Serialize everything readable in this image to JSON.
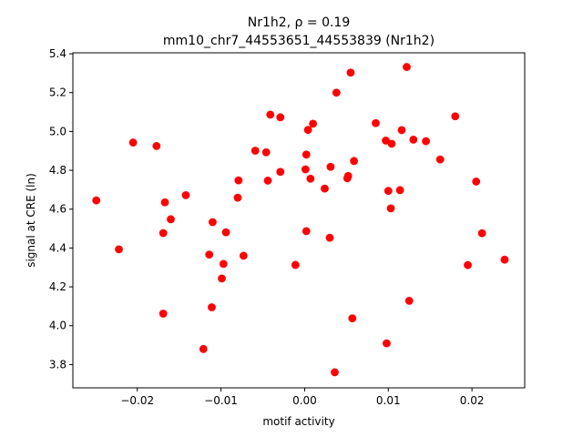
{
  "chart_data": {
    "type": "scatter",
    "title_line1": "Nr1h2, ρ = 0.19",
    "title_line2": "mm10_chr7_44553651_44553839 (Nr1h2)",
    "xlabel": "motif activity",
    "ylabel": "signal at CRE (ln)",
    "xlim": [
      -0.0277,
      0.0263
    ],
    "ylim": [
      3.68,
      5.405
    ],
    "xticks": [
      -0.02,
      -0.01,
      0.0,
      0.01,
      0.02
    ],
    "xtick_labels": [
      "−0.02",
      "−0.01",
      "0.00",
      "0.01",
      "0.02"
    ],
    "yticks": [
      3.8,
      4.0,
      4.2,
      4.4,
      4.6,
      4.8,
      5.0,
      5.2,
      5.4
    ],
    "ytick_labels": [
      "3.8",
      "4.0",
      "4.2",
      "4.4",
      "4.6",
      "4.8",
      "5.0",
      "5.2",
      "5.4"
    ],
    "grid": false,
    "marker_color": "#ff0000",
    "series": [
      {
        "points": [
          [
            -0.0249,
            4.645
          ],
          [
            -0.0222,
            4.393
          ],
          [
            -0.0205,
            4.943
          ],
          [
            -0.0177,
            4.925
          ],
          [
            -0.0169,
            4.062
          ],
          [
            -0.0169,
            4.477
          ],
          [
            -0.0167,
            4.635
          ],
          [
            -0.016,
            4.548
          ],
          [
            -0.0142,
            4.672
          ],
          [
            -0.0121,
            3.88
          ],
          [
            -0.0114,
            4.366
          ],
          [
            -0.0111,
            4.095
          ],
          [
            -0.011,
            4.533
          ],
          [
            -0.0099,
            4.243
          ],
          [
            -0.0097,
            4.318
          ],
          [
            -0.0094,
            4.481
          ],
          [
            -0.008,
            4.659
          ],
          [
            -0.0079,
            4.748
          ],
          [
            -0.0073,
            4.36
          ],
          [
            -0.0059,
            4.901
          ],
          [
            -0.0046,
            4.893
          ],
          [
            -0.0044,
            4.747
          ],
          [
            -0.0041,
            5.087
          ],
          [
            -0.0029,
            4.792
          ],
          [
            -0.0029,
            5.073
          ],
          [
            -0.0011,
            4.313
          ],
          [
            0.0001,
            4.805
          ],
          [
            0.0002,
            4.487
          ],
          [
            0.0002,
            4.881
          ],
          [
            0.0004,
            5.008
          ],
          [
            0.0007,
            4.757
          ],
          [
            0.001,
            5.04
          ],
          [
            0.0024,
            4.706
          ],
          [
            0.003,
            4.453
          ],
          [
            0.0031,
            4.818
          ],
          [
            0.0036,
            3.76
          ],
          [
            0.0038,
            5.2
          ],
          [
            0.0051,
            4.759
          ],
          [
            0.0052,
            4.771
          ],
          [
            0.0055,
            5.303
          ],
          [
            0.0057,
            4.038
          ],
          [
            0.0059,
            4.848
          ],
          [
            0.0085,
            5.043
          ],
          [
            0.0097,
            4.953
          ],
          [
            0.0098,
            3.909
          ],
          [
            0.01,
            4.694
          ],
          [
            0.0103,
            4.604
          ],
          [
            0.0104,
            4.937
          ],
          [
            0.0114,
            4.698
          ],
          [
            0.0116,
            5.007
          ],
          [
            0.0122,
            5.332
          ],
          [
            0.0125,
            4.128
          ],
          [
            0.013,
            4.958
          ],
          [
            0.0145,
            4.95
          ],
          [
            0.0162,
            4.856
          ],
          [
            0.018,
            5.078
          ],
          [
            0.0195,
            4.312
          ],
          [
            0.0205,
            4.742
          ],
          [
            0.0212,
            4.476
          ],
          [
            0.0239,
            4.34
          ]
        ]
      }
    ]
  }
}
